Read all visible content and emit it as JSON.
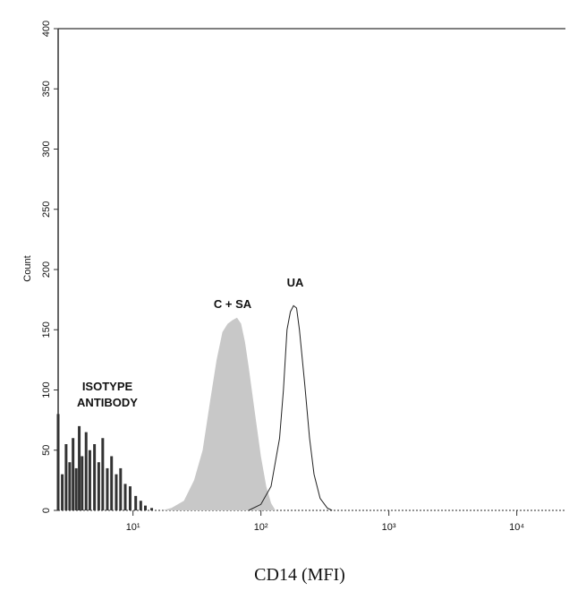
{
  "chart_data": {
    "type": "histogram-overlay",
    "x_label": "CD14 (MFI)",
    "y_label": "Count",
    "xlim": [
      2.6,
      24000
    ],
    "ylim": [
      0,
      400
    ],
    "log_x": true,
    "xticks": [
      {
        "value": 10,
        "label": "10¹"
      },
      {
        "value": 100,
        "label": "10²"
      },
      {
        "value": 1000,
        "label": "10³"
      },
      {
        "value": 10000,
        "label": "10⁴"
      }
    ],
    "yticks": [
      0,
      50,
      100,
      150,
      200,
      250,
      300,
      350,
      400
    ],
    "annotations": [
      "ISOTYPE",
      "ANTIBODY",
      "C + SA",
      "UA"
    ],
    "series": [
      {
        "draw": "spikes",
        "color": "#333333",
        "x": [
          2.6,
          2.8,
          3.0,
          3.2,
          3.4,
          3.6,
          3.8,
          4.0,
          4.3,
          4.6,
          5.0,
          5.4,
          5.8,
          6.3,
          6.8,
          7.4,
          8.0,
          8.7,
          9.5,
          10.5,
          11.5,
          12.5,
          14,
          16
        ],
        "values": [
          80,
          30,
          55,
          40,
          60,
          35,
          70,
          45,
          65,
          50,
          55,
          40,
          60,
          35,
          45,
          30,
          35,
          22,
          20,
          12,
          8,
          4,
          2,
          0
        ]
      },
      {
        "draw": "area",
        "color": "#c8c8c8",
        "x": [
          17,
          20,
          25,
          30,
          35,
          40,
          45,
          50,
          55,
          60,
          65,
          70,
          75,
          80,
          90,
          100,
          110,
          120,
          130
        ],
        "values": [
          0,
          2,
          8,
          25,
          50,
          90,
          125,
          148,
          155,
          158,
          160,
          155,
          140,
          120,
          80,
          45,
          20,
          6,
          0
        ]
      },
      {
        "draw": "outline",
        "color": "#222222",
        "x": [
          80,
          100,
          120,
          140,
          150,
          160,
          170,
          180,
          190,
          200,
          220,
          240,
          260,
          290,
          330,
          360
        ],
        "values": [
          0,
          5,
          20,
          60,
          100,
          150,
          165,
          170,
          168,
          150,
          105,
          60,
          30,
          10,
          2,
          0
        ]
      }
    ]
  }
}
